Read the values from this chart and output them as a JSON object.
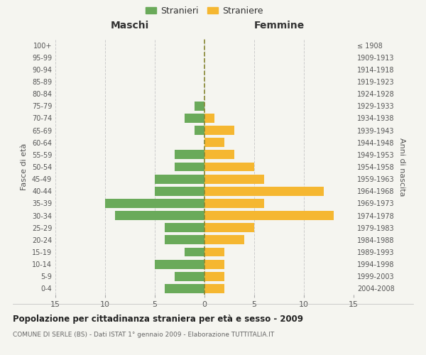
{
  "age_groups": [
    "0-4",
    "5-9",
    "10-14",
    "15-19",
    "20-24",
    "25-29",
    "30-34",
    "35-39",
    "40-44",
    "45-49",
    "50-54",
    "55-59",
    "60-64",
    "65-69",
    "70-74",
    "75-79",
    "80-84",
    "85-89",
    "90-94",
    "95-99",
    "100+"
  ],
  "birth_years": [
    "2004-2008",
    "1999-2003",
    "1994-1998",
    "1989-1993",
    "1984-1988",
    "1979-1983",
    "1974-1978",
    "1969-1973",
    "1964-1968",
    "1959-1963",
    "1954-1958",
    "1949-1953",
    "1944-1948",
    "1939-1943",
    "1934-1938",
    "1929-1933",
    "1924-1928",
    "1919-1923",
    "1914-1918",
    "1909-1913",
    "≤ 1908"
  ],
  "males": [
    4,
    3,
    5,
    2,
    4,
    4,
    9,
    10,
    5,
    5,
    3,
    3,
    0,
    1,
    2,
    1,
    0,
    0,
    0,
    0,
    0
  ],
  "females": [
    2,
    2,
    2,
    2,
    4,
    5,
    13,
    6,
    12,
    6,
    5,
    3,
    2,
    3,
    1,
    0,
    0,
    0,
    0,
    0,
    0
  ],
  "male_color": "#6aaa5a",
  "female_color": "#f5b731",
  "center_line_color": "#888833",
  "grid_color": "#cccccc",
  "title": "Popolazione per cittadinanza straniera per età e sesso - 2009",
  "subtitle": "COMUNE DI SERLE (BS) - Dati ISTAT 1° gennaio 2009 - Elaborazione TUTTITALIA.IT",
  "xlabel_left": "Maschi",
  "xlabel_right": "Femmine",
  "ylabel_left": "Fasce di età",
  "ylabel_right": "Anni di nascita",
  "legend_male": "Stranieri",
  "legend_female": "Straniere",
  "xlim": 15,
  "bg_color": "#f5f5f0"
}
